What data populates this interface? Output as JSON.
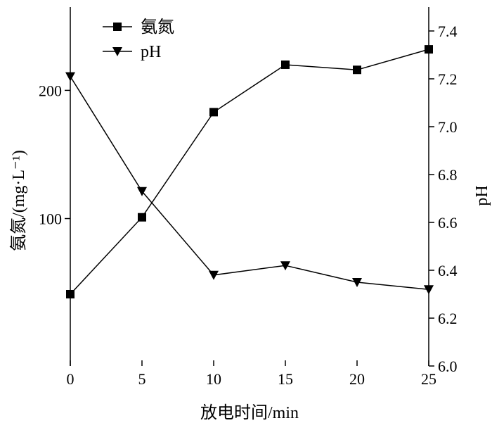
{
  "chart_data": {
    "type": "line",
    "x": [
      0,
      5,
      10,
      15,
      20,
      25
    ],
    "xlabel": "放电时间/min",
    "xlim": [
      0,
      25
    ],
    "xticks": [
      "0",
      "5",
      "10",
      "15",
      "20",
      "25"
    ],
    "y_left": {
      "label": "氨氮/(mg·L⁻¹)",
      "lim": [
        -15,
        265
      ],
      "ticks": [
        "100",
        "200"
      ]
    },
    "y_right": {
      "label": "pH",
      "lim": [
        6.0,
        7.5
      ],
      "ticks": [
        "6.0",
        "6.2",
        "6.4",
        "6.6",
        "6.8",
        "7.0",
        "7.2",
        "7.4"
      ]
    },
    "series": [
      {
        "name": "氨氮",
        "axis": "left",
        "marker": "square",
        "values": [
          41,
          101,
          183,
          220,
          216,
          232
        ]
      },
      {
        "name": "pH",
        "axis": "right",
        "marker": "triangle-down",
        "values": [
          7.21,
          6.73,
          6.38,
          6.42,
          6.35,
          6.32
        ]
      }
    ],
    "legend": "top-left",
    "grid": false
  }
}
